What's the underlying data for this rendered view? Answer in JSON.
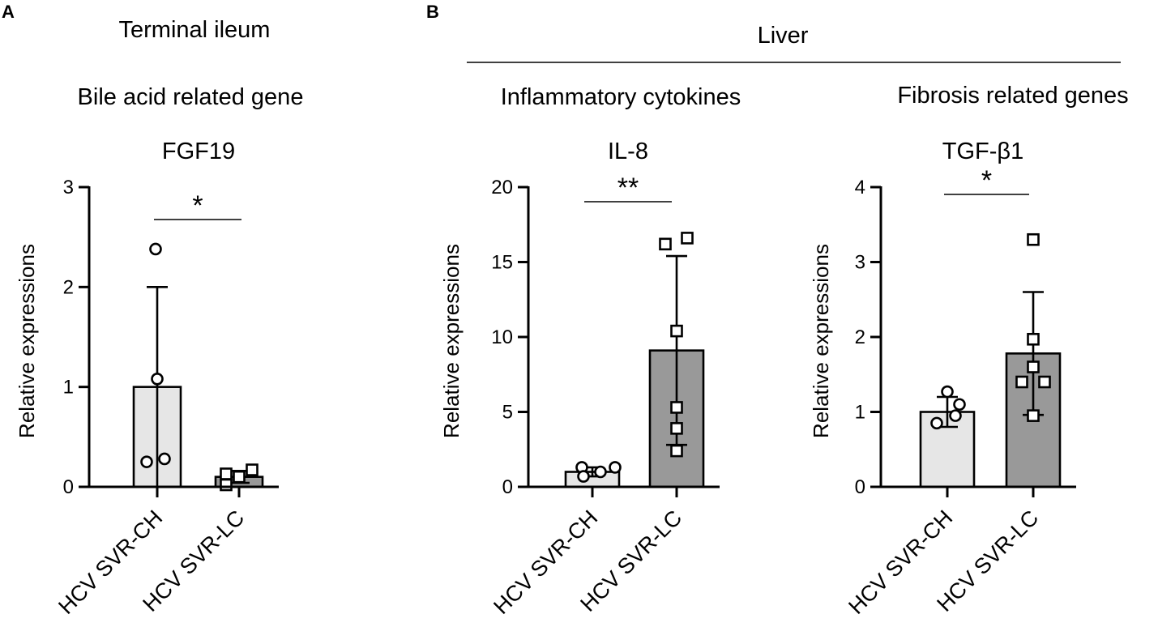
{
  "panel_labels": {
    "a": "A",
    "b": "B"
  },
  "headers": {
    "terminal_ileum": "Terminal ileum",
    "liver": "Liver",
    "bile_acid": "Bile acid related gene",
    "inflammatory": "Inflammatory cytokines",
    "fibrosis": "Fibrosis related genes"
  },
  "colors": {
    "group1_bar": "#e6e6e6",
    "group2_bar": "#999999",
    "outline": "#000000"
  },
  "chart_data": [
    {
      "type": "bar",
      "title": "FGF19",
      "ylabel": "Relative expressions",
      "categories": [
        "HCV SVR-CH",
        "HCV SVR-LC"
      ],
      "ylim": [
        0,
        3
      ],
      "yticks": [
        "0",
        "1",
        "2",
        "3"
      ],
      "means": [
        1.0,
        0.1
      ],
      "sd": [
        1.0,
        0.06
      ],
      "points": [
        [
          2.38,
          1.08,
          0.25,
          0.28
        ],
        [
          0.02,
          0.13,
          0.1,
          0.17
        ]
      ],
      "markers": [
        "circle",
        "square"
      ],
      "significance": "*"
    },
    {
      "type": "bar",
      "title": "IL-8",
      "ylabel": "Relative expressions",
      "categories": [
        "HCV SVR-CH",
        "HCV SVR-LC"
      ],
      "ylim": [
        0,
        20
      ],
      "yticks": [
        "0",
        "5",
        "10",
        "15",
        "20"
      ],
      "means": [
        1.0,
        9.1
      ],
      "sd": [
        0.3,
        6.3
      ],
      "points": [
        [
          1.3,
          0.7,
          1.0,
          1.3
        ],
        [
          16.2,
          16.6,
          10.4,
          5.3,
          3.9,
          2.4
        ]
      ],
      "markers": [
        "circle",
        "square"
      ],
      "significance": "**"
    },
    {
      "type": "bar",
      "title": "TGF-β1",
      "ylabel": "Relative expressions",
      "categories": [
        "HCV SVR-CH",
        "HCV SVR-LC"
      ],
      "ylim": [
        0,
        4
      ],
      "yticks": [
        "0",
        "1",
        "2",
        "3",
        "4"
      ],
      "means": [
        1.0,
        1.78
      ],
      "sd": [
        0.2,
        0.82
      ],
      "points": [
        [
          1.27,
          1.1,
          0.85,
          0.95
        ],
        [
          3.3,
          1.97,
          1.6,
          1.4,
          1.4,
          0.95
        ]
      ],
      "markers": [
        "circle",
        "square"
      ],
      "significance": "*"
    }
  ]
}
